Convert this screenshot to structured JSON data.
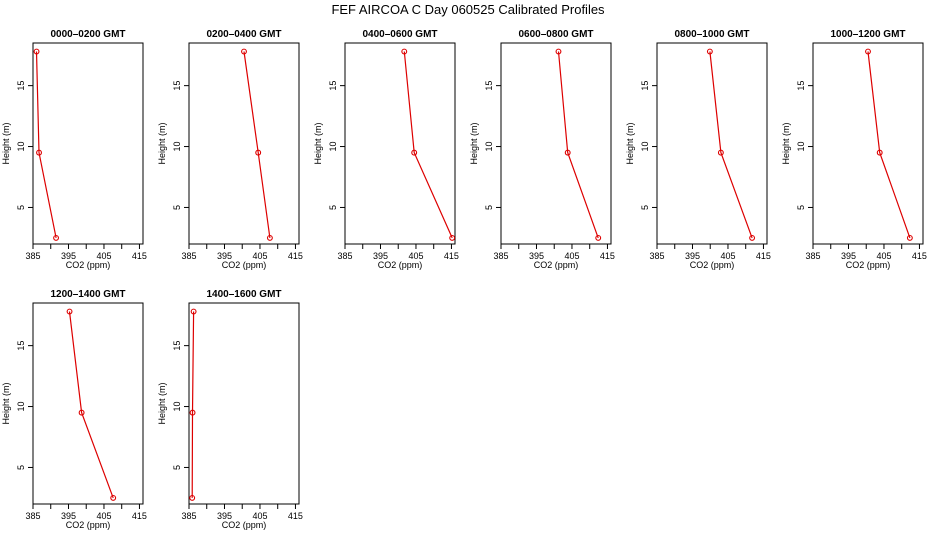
{
  "figure": {
    "title": "FEF AIRCOA C  Day 060525  Calibrated Profiles"
  },
  "colors": {
    "series": "#dd0000",
    "axes": "#000000"
  },
  "chart_data": [
    {
      "type": "line",
      "title": "0000–0200 GMT",
      "xlabel": "CO2 (ppm)",
      "ylabel": "Height (m)",
      "xlim": [
        385,
        416
      ],
      "ylim": [
        2,
        18.5
      ],
      "xticks": [
        385,
        395,
        405,
        415
      ],
      "yticks": [
        5,
        10,
        15
      ],
      "series": [
        {
          "x": [
            386.0,
            386.7,
            391.5
          ],
          "y": [
            17.8,
            9.5,
            2.5
          ]
        }
      ]
    },
    {
      "type": "line",
      "title": "0200–0400 GMT",
      "xlabel": "CO2 (ppm)",
      "ylabel": "Height (m)",
      "xlim": [
        385,
        416
      ],
      "ylim": [
        2,
        18.5
      ],
      "xticks": [
        385,
        395,
        405,
        415
      ],
      "yticks": [
        5,
        10,
        15
      ],
      "series": [
        {
          "x": [
            400.5,
            404.5,
            407.8
          ],
          "y": [
            17.8,
            9.5,
            2.5
          ]
        }
      ]
    },
    {
      "type": "line",
      "title": "0400–0600 GMT",
      "xlabel": "CO2 (ppm)",
      "ylabel": "Height (m)",
      "xlim": [
        385,
        416
      ],
      "ylim": [
        2,
        18.5
      ],
      "xticks": [
        385,
        395,
        405,
        415
      ],
      "yticks": [
        5,
        10,
        15
      ],
      "series": [
        {
          "x": [
            401.7,
            404.5,
            415.2
          ],
          "y": [
            17.8,
            9.5,
            2.5
          ]
        }
      ]
    },
    {
      "type": "line",
      "title": "0600–0800 GMT",
      "xlabel": "CO2 (ppm)",
      "ylabel": "Height (m)",
      "xlim": [
        385,
        416
      ],
      "ylim": [
        2,
        18.5
      ],
      "xticks": [
        385,
        395,
        405,
        415
      ],
      "yticks": [
        5,
        10,
        15
      ],
      "series": [
        {
          "x": [
            401.2,
            403.8,
            412.4
          ],
          "y": [
            17.8,
            9.5,
            2.5
          ]
        }
      ]
    },
    {
      "type": "line",
      "title": "0800–1000 GMT",
      "xlabel": "CO2 (ppm)",
      "ylabel": "Height (m)",
      "xlim": [
        385,
        416
      ],
      "ylim": [
        2,
        18.5
      ],
      "xticks": [
        385,
        395,
        405,
        415
      ],
      "yticks": [
        5,
        10,
        15
      ],
      "series": [
        {
          "x": [
            399.9,
            403.0,
            411.8
          ],
          "y": [
            17.8,
            9.5,
            2.5
          ]
        }
      ]
    },
    {
      "type": "line",
      "title": "1000–1200 GMT",
      "xlabel": "CO2 (ppm)",
      "ylabel": "Height (m)",
      "xlim": [
        385,
        416
      ],
      "ylim": [
        2,
        18.5
      ],
      "xticks": [
        385,
        395,
        405,
        415
      ],
      "yticks": [
        5,
        10,
        15
      ],
      "series": [
        {
          "x": [
            400.5,
            403.8,
            412.3
          ],
          "y": [
            17.8,
            9.5,
            2.5
          ]
        }
      ]
    },
    {
      "type": "line",
      "title": "1200–1400 GMT",
      "xlabel": "CO2 (ppm)",
      "ylabel": "Height (m)",
      "xlim": [
        385,
        416
      ],
      "ylim": [
        2,
        18.5
      ],
      "xticks": [
        385,
        395,
        405,
        415
      ],
      "yticks": [
        5,
        10,
        15
      ],
      "series": [
        {
          "x": [
            395.3,
            398.7,
            407.6
          ],
          "y": [
            17.8,
            9.5,
            2.5
          ]
        }
      ]
    },
    {
      "type": "line",
      "title": "1400–1600 GMT",
      "xlabel": "CO2 (ppm)",
      "ylabel": "Height (m)",
      "xlim": [
        385,
        416
      ],
      "ylim": [
        2,
        18.5
      ],
      "xticks": [
        385,
        395,
        405,
        415
      ],
      "yticks": [
        5,
        10,
        15
      ],
      "series": [
        {
          "x": [
            386.3,
            386.0,
            385.9
          ],
          "y": [
            17.8,
            9.5,
            2.5
          ]
        }
      ]
    }
  ]
}
